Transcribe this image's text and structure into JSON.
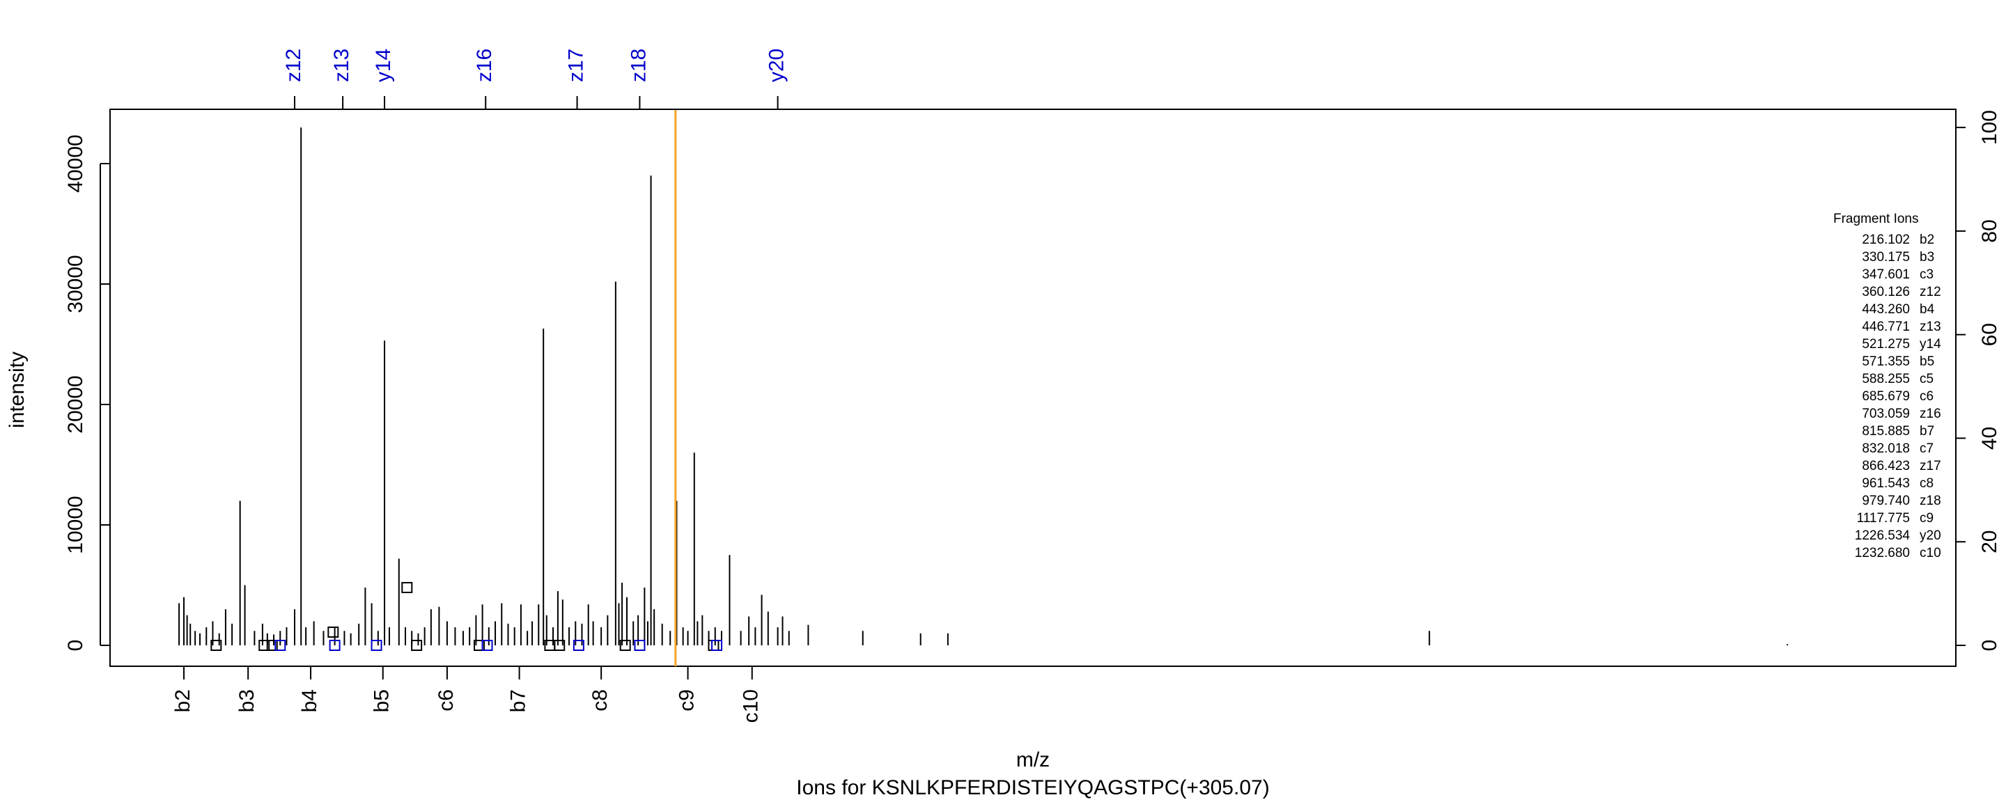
{
  "chart_data": {
    "type": "spectrum",
    "title": "Ions for KSNLKPFERDISTEIYQAGSTPC(+305.07)",
    "xlabel": "m/z",
    "ylabel": "intensity",
    "xlim": [
      150,
      1300
    ],
    "ylim": [
      0,
      45000
    ],
    "yticks": [
      0,
      10000,
      20000,
      30000,
      40000
    ],
    "right_axis": {
      "ticks": [
        0,
        20,
        40,
        60,
        80,
        100
      ]
    },
    "precursor_line": {
      "x": 502.3,
      "color": "#f5a623"
    },
    "peaks": [
      [
        193,
        3500
      ],
      [
        196,
        4000
      ],
      [
        198,
        2500
      ],
      [
        200,
        1800
      ],
      [
        203,
        1200
      ],
      [
        206,
        1000
      ],
      [
        210,
        1500
      ],
      [
        214,
        2000
      ],
      [
        218,
        1000
      ],
      [
        222,
        3000
      ],
      [
        226,
        1800
      ],
      [
        231,
        12000
      ],
      [
        234,
        5000
      ],
      [
        240,
        1200
      ],
      [
        245,
        1800
      ],
      [
        248,
        1000
      ],
      [
        252,
        900
      ],
      [
        256,
        1200
      ],
      [
        260,
        1500
      ],
      [
        265,
        3000
      ],
      [
        269,
        43000
      ],
      [
        272,
        1500
      ],
      [
        277,
        2000
      ],
      [
        283,
        1200
      ],
      [
        290,
        1500
      ],
      [
        296,
        1200
      ],
      [
        300,
        1000
      ],
      [
        305,
        1800
      ],
      [
        309,
        4800
      ],
      [
        313,
        3500
      ],
      [
        317,
        1200
      ],
      [
        321,
        25300
      ],
      [
        324,
        1500
      ],
      [
        330,
        7200
      ],
      [
        334,
        1500
      ],
      [
        338,
        1200
      ],
      [
        342,
        1000
      ],
      [
        346,
        1500
      ],
      [
        350,
        3000
      ],
      [
        355,
        3200
      ],
      [
        360,
        2000
      ],
      [
        365,
        1500
      ],
      [
        370,
        1200
      ],
      [
        374,
        1500
      ],
      [
        378,
        2500
      ],
      [
        382,
        3400
      ],
      [
        386,
        1500
      ],
      [
        390,
        2000
      ],
      [
        394,
        3500
      ],
      [
        398,
        1800
      ],
      [
        402,
        1500
      ],
      [
        406,
        3400
      ],
      [
        410,
        1200
      ],
      [
        413,
        2000
      ],
      [
        417,
        3400
      ],
      [
        420,
        26300
      ],
      [
        422,
        2500
      ],
      [
        426,
        1500
      ],
      [
        429,
        4500
      ],
      [
        432,
        3800
      ],
      [
        436,
        1500
      ],
      [
        440,
        2000
      ],
      [
        444,
        1800
      ],
      [
        448,
        3400
      ],
      [
        451,
        2000
      ],
      [
        456,
        1500
      ],
      [
        460,
        2500
      ],
      [
        465,
        30200
      ],
      [
        467,
        3500
      ],
      [
        469,
        5200
      ],
      [
        472,
        4000
      ],
      [
        476,
        2000
      ],
      [
        479,
        2500
      ],
      [
        483,
        4800
      ],
      [
        485,
        2000
      ],
      [
        487,
        39000
      ],
      [
        489,
        3000
      ],
      [
        494,
        1800
      ],
      [
        499,
        1200
      ],
      [
        503,
        12000
      ],
      [
        507,
        1500
      ],
      [
        510,
        1200
      ],
      [
        514,
        16000
      ],
      [
        516,
        2000
      ],
      [
        519,
        2500
      ],
      [
        523,
        1200
      ],
      [
        527,
        1500
      ],
      [
        531,
        1200
      ],
      [
        536,
        7500
      ],
      [
        543,
        1200
      ],
      [
        548,
        2400
      ],
      [
        552,
        1500
      ],
      [
        556,
        4200
      ],
      [
        560,
        2800
      ],
      [
        566,
        1500
      ],
      [
        569,
        2400
      ],
      [
        573,
        1200
      ],
      [
        585,
        1700
      ],
      [
        619,
        1200
      ],
      [
        655,
        1000
      ],
      [
        672,
        1000
      ],
      [
        972,
        1200
      ],
      [
        1195,
        100
      ]
    ],
    "markers": [
      {
        "x": 216.102,
        "y": 0,
        "color": "#000000"
      },
      {
        "x": 246,
        "y": 0,
        "color": "#000000"
      },
      {
        "x": 251,
        "y": 0,
        "color": "#000000"
      },
      {
        "x": 256,
        "y": 0,
        "color": "#0000cc"
      },
      {
        "x": 290,
        "y": 0,
        "color": "#0000cc"
      },
      {
        "x": 289,
        "y": 1100,
        "color": "#000000"
      },
      {
        "x": 316,
        "y": 0,
        "color": "#0000cc"
      },
      {
        "x": 335,
        "y": 4800,
        "color": "#000000"
      },
      {
        "x": 341,
        "y": 0,
        "color": "#000000"
      },
      {
        "x": 380,
        "y": 0,
        "color": "#000000"
      },
      {
        "x": 385,
        "y": 0,
        "color": "#0000cc"
      },
      {
        "x": 424,
        "y": 0,
        "color": "#000000"
      },
      {
        "x": 430,
        "y": 0,
        "color": "#000000"
      },
      {
        "x": 442,
        "y": 0,
        "color": "#0000cc"
      },
      {
        "x": 471,
        "y": 0,
        "color": "#000000"
      },
      {
        "x": 480,
        "y": 0,
        "color": "#0000cc"
      },
      {
        "x": 526,
        "y": 0,
        "color": "#000000"
      },
      {
        "x": 528,
        "y": 0,
        "color": "#0000cc"
      }
    ],
    "top_ions": [
      {
        "label": "z12",
        "x": 265
      },
      {
        "label": "z13",
        "x": 295
      },
      {
        "label": "y14",
        "x": 321
      },
      {
        "label": "z16",
        "x": 384
      },
      {
        "label": "z17",
        "x": 441
      },
      {
        "label": "z18",
        "x": 480
      },
      {
        "label": "y20",
        "x": 566
      }
    ],
    "bottom_ions": [
      {
        "label": "b2",
        "x": 196
      },
      {
        "label": "b3",
        "x": 236
      },
      {
        "label": "b4",
        "x": 275
      },
      {
        "label": "b5",
        "x": 320
      },
      {
        "label": "c6",
        "x": 360
      },
      {
        "label": "b7",
        "x": 405
      },
      {
        "label": "c8",
        "x": 456
      },
      {
        "label": "c9",
        "x": 510
      },
      {
        "label": "c10",
        "x": 550
      }
    ],
    "legend": {
      "title": "Fragment Ions",
      "placement": "right",
      "entries": [
        {
          "mz": "216.102",
          "ion": "b2"
        },
        {
          "mz": "330.175",
          "ion": "b3"
        },
        {
          "mz": "347.601",
          "ion": "c3"
        },
        {
          "mz": "360.126",
          "ion": "z12"
        },
        {
          "mz": "443.260",
          "ion": "b4"
        },
        {
          "mz": "446.771",
          "ion": "z13"
        },
        {
          "mz": "521.275",
          "ion": "y14"
        },
        {
          "mz": "571.355",
          "ion": "b5"
        },
        {
          "mz": "588.255",
          "ion": "c5"
        },
        {
          "mz": "685.679",
          "ion": "c6"
        },
        {
          "mz": "703.059",
          "ion": "z16"
        },
        {
          "mz": "815.885",
          "ion": "b7"
        },
        {
          "mz": "832.018",
          "ion": "c7"
        },
        {
          "mz": "866.423",
          "ion": "z17"
        },
        {
          "mz": "961.543",
          "ion": "c8"
        },
        {
          "mz": "979.740",
          "ion": "z18"
        },
        {
          "mz": "1117.775",
          "ion": "c9"
        },
        {
          "mz": "1226.534",
          "ion": "y20"
        },
        {
          "mz": "1232.680",
          "ion": "c10"
        }
      ]
    }
  }
}
